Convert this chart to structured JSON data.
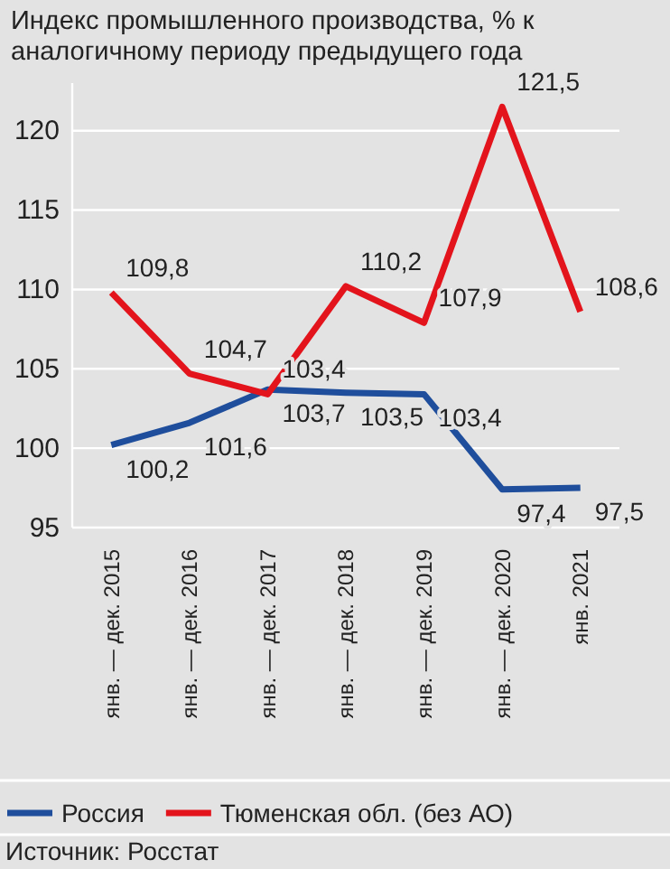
{
  "chart_data": {
    "type": "line",
    "title": "Индекс промышленного производства, % к аналогичному периоду предыдущего года",
    "categories": [
      "янв. — дек. 2015",
      "янв. — дек. 2016",
      "янв. — дек. 2017",
      "янв. — дек. 2018",
      "янв. — дек. 2019",
      "янв. — дек. 2020",
      "янв. 2021"
    ],
    "series": [
      {
        "name": "Россия",
        "color": "#1f4e9c",
        "values": [
          100.2,
          101.6,
          103.7,
          103.5,
          103.4,
          97.4,
          97.5
        ],
        "value_labels": [
          "100,2",
          "101,6",
          "103,7",
          "103,5",
          "103,4",
          "97,4",
          "97,5"
        ]
      },
      {
        "name": "Тюменская обл. (без АО)",
        "color": "#e3141c",
        "values": [
          109.8,
          104.7,
          103.4,
          110.2,
          107.9,
          121.5,
          108.6
        ],
        "value_labels": [
          "109,8",
          "104,7",
          "103,4",
          "110,2",
          "107,9",
          "121,5",
          "108,6"
        ]
      }
    ],
    "ylim": [
      95,
      123
    ],
    "yticks": [
      95,
      100,
      105,
      110,
      115,
      120
    ],
    "grid": "y",
    "legend": "bottom",
    "marker": "none",
    "line_style": "solid",
    "annotations": [
      "Источник: Росстат"
    ]
  }
}
